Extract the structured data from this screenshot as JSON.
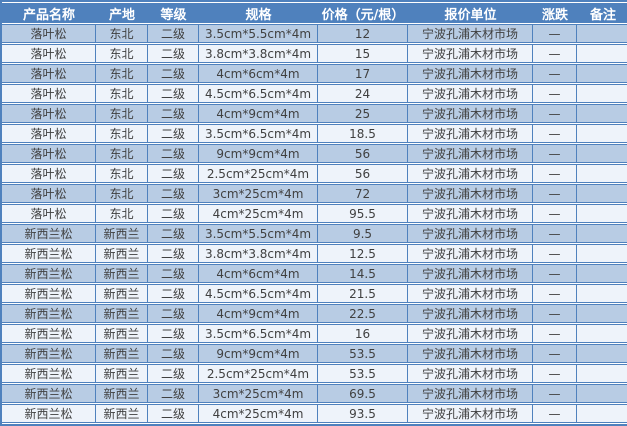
{
  "colors": {
    "header_bg": "#4f81bd",
    "header_text": "#ffffff",
    "grid_line": "#4f81bd",
    "row_odd_bg": "#b8cce4",
    "row_even_bg": "#eef3fa",
    "body_text": "#404040"
  },
  "table": {
    "columns": [
      {
        "key": "product",
        "label": "产品名称"
      },
      {
        "key": "origin",
        "label": "产地"
      },
      {
        "key": "grade",
        "label": "等级"
      },
      {
        "key": "spec",
        "label": "规格"
      },
      {
        "key": "price",
        "label": "价格（元/根）"
      },
      {
        "key": "quoter",
        "label": "报价单位"
      },
      {
        "key": "change",
        "label": "涨跌"
      },
      {
        "key": "note",
        "label": "备注"
      }
    ],
    "rows": [
      {
        "product": "落叶松",
        "origin": "东北",
        "grade": "二级",
        "spec": "3.5cm*5.5cm*4m",
        "price": "12",
        "quoter": "宁波孔浦木材市场",
        "change": "—",
        "note": ""
      },
      {
        "product": "落叶松",
        "origin": "东北",
        "grade": "二级",
        "spec": "3.8cm*3.8cm*4m",
        "price": "15",
        "quoter": "宁波孔浦木材市场",
        "change": "—",
        "note": ""
      },
      {
        "product": "落叶松",
        "origin": "东北",
        "grade": "二级",
        "spec": "4cm*6cm*4m",
        "price": "17",
        "quoter": "宁波孔浦木材市场",
        "change": "—",
        "note": ""
      },
      {
        "product": "落叶松",
        "origin": "东北",
        "grade": "二级",
        "spec": "4.5cm*6.5cm*4m",
        "price": "24",
        "quoter": "宁波孔浦木材市场",
        "change": "—",
        "note": ""
      },
      {
        "product": "落叶松",
        "origin": "东北",
        "grade": "二级",
        "spec": "4cm*9cm*4m",
        "price": "25",
        "quoter": "宁波孔浦木材市场",
        "change": "—",
        "note": ""
      },
      {
        "product": "落叶松",
        "origin": "东北",
        "grade": "二级",
        "spec": "3.5cm*6.5cm*4m",
        "price": "18.5",
        "quoter": "宁波孔浦木材市场",
        "change": "—",
        "note": ""
      },
      {
        "product": "落叶松",
        "origin": "东北",
        "grade": "二级",
        "spec": "9cm*9cm*4m",
        "price": "56",
        "quoter": "宁波孔浦木材市场",
        "change": "—",
        "note": ""
      },
      {
        "product": "落叶松",
        "origin": "东北",
        "grade": "二级",
        "spec": "2.5cm*25cm*4m",
        "price": "56",
        "quoter": "宁波孔浦木材市场",
        "change": "—",
        "note": ""
      },
      {
        "product": "落叶松",
        "origin": "东北",
        "grade": "二级",
        "spec": "3cm*25cm*4m",
        "price": "72",
        "quoter": "宁波孔浦木材市场",
        "change": "—",
        "note": ""
      },
      {
        "product": "落叶松",
        "origin": "东北",
        "grade": "二级",
        "spec": "4cm*25cm*4m",
        "price": "95.5",
        "quoter": "宁波孔浦木材市场",
        "change": "—",
        "note": ""
      },
      {
        "product": "新西兰松",
        "origin": "新西兰",
        "grade": "二级",
        "spec": "3.5cm*5.5cm*4m",
        "price": "9.5",
        "quoter": "宁波孔浦木材市场",
        "change": "—",
        "note": ""
      },
      {
        "product": "新西兰松",
        "origin": "新西兰",
        "grade": "二级",
        "spec": "3.8cm*3.8cm*4m",
        "price": "12.5",
        "quoter": "宁波孔浦木材市场",
        "change": "—",
        "note": ""
      },
      {
        "product": "新西兰松",
        "origin": "新西兰",
        "grade": "二级",
        "spec": "4cm*6cm*4m",
        "price": "14.5",
        "quoter": "宁波孔浦木材市场",
        "change": "—",
        "note": ""
      },
      {
        "product": "新西兰松",
        "origin": "新西兰",
        "grade": "二级",
        "spec": "4.5cm*6.5cm*4m",
        "price": "21.5",
        "quoter": "宁波孔浦木材市场",
        "change": "—",
        "note": ""
      },
      {
        "product": "新西兰松",
        "origin": "新西兰",
        "grade": "二级",
        "spec": "4cm*9cm*4m",
        "price": "22.5",
        "quoter": "宁波孔浦木材市场",
        "change": "—",
        "note": ""
      },
      {
        "product": "新西兰松",
        "origin": "新西兰",
        "grade": "二级",
        "spec": "3.5cm*6.5cm*4m",
        "price": "16",
        "quoter": "宁波孔浦木材市场",
        "change": "—",
        "note": ""
      },
      {
        "product": "新西兰松",
        "origin": "新西兰",
        "grade": "二级",
        "spec": "9cm*9cm*4m",
        "price": "53.5",
        "quoter": "宁波孔浦木材市场",
        "change": "—",
        "note": ""
      },
      {
        "product": "新西兰松",
        "origin": "新西兰",
        "grade": "二级",
        "spec": "2.5cm*25cm*4m",
        "price": "53.5",
        "quoter": "宁波孔浦木材市场",
        "change": "—",
        "note": ""
      },
      {
        "product": "新西兰松",
        "origin": "新西兰",
        "grade": "二级",
        "spec": "3cm*25cm*4m",
        "price": "69.5",
        "quoter": "宁波孔浦木材市场",
        "change": "—",
        "note": ""
      },
      {
        "product": "新西兰松",
        "origin": "新西兰",
        "grade": "二级",
        "spec": "4cm*25cm*4m",
        "price": "93.5",
        "quoter": "宁波孔浦木材市场",
        "change": "—",
        "note": ""
      }
    ]
  }
}
